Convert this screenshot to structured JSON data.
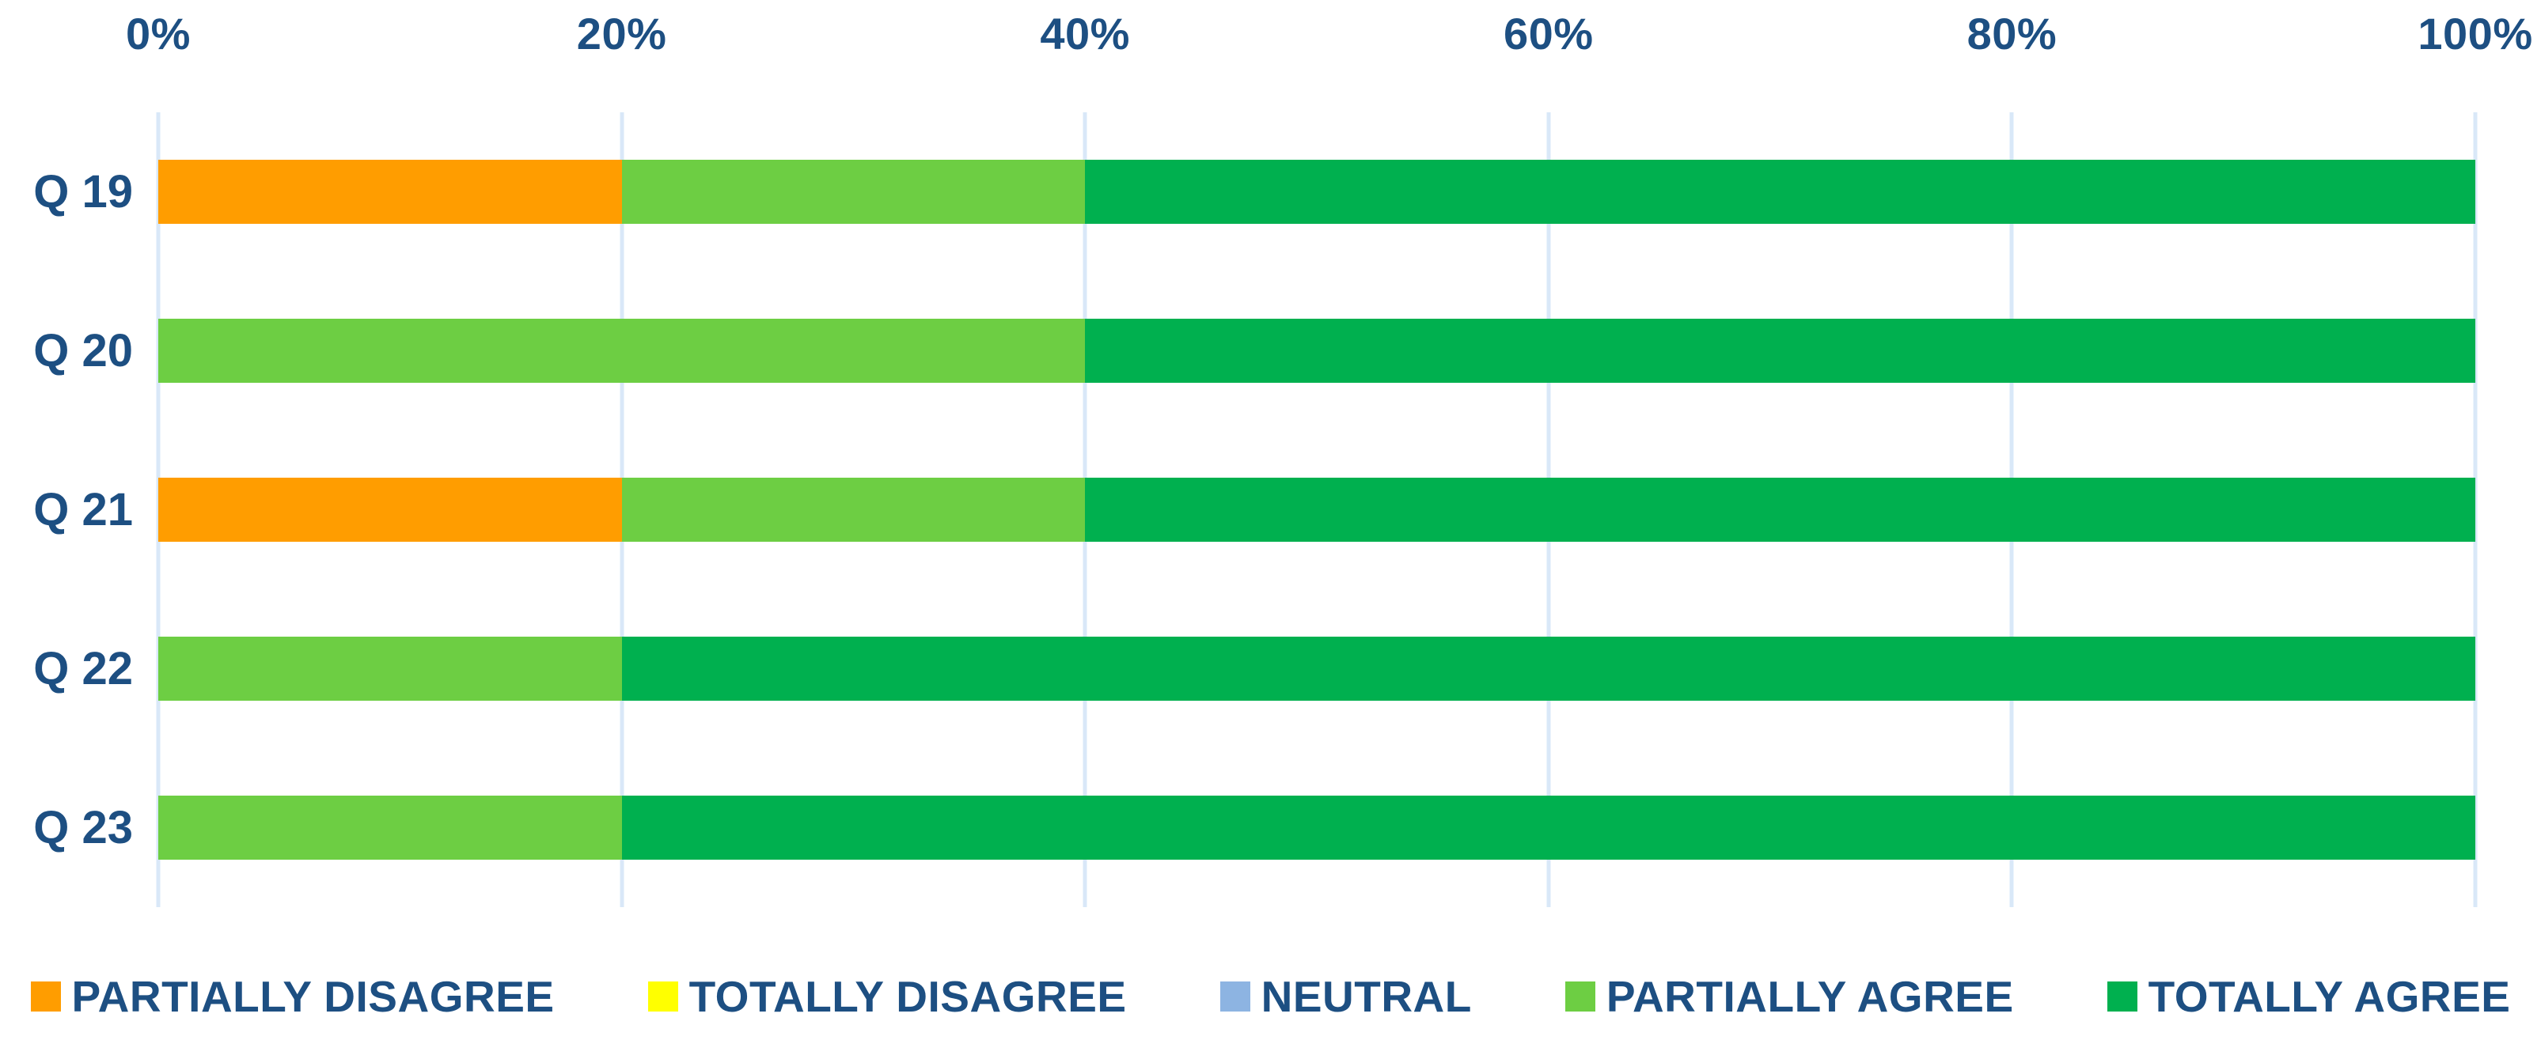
{
  "chart_data": {
    "type": "bar",
    "orientation": "horizontal",
    "stacked": true,
    "percent_stacked": true,
    "title": "",
    "xlabel": "",
    "ylabel": "",
    "categories": [
      "Q 19",
      "Q 20",
      "Q 21",
      "Q 22",
      "Q 23"
    ],
    "series": [
      {
        "name": "PARTIALLY DISAGREE",
        "color": "#FF9D00",
        "values": [
          20,
          0,
          20,
          0,
          0
        ]
      },
      {
        "name": "TOTALLY DISAGREE",
        "color": "#FFFF00",
        "values": [
          0,
          0,
          0,
          0,
          0
        ]
      },
      {
        "name": "NEUTRAL",
        "color": "#8DB4E2",
        "values": [
          0,
          0,
          0,
          0,
          0
        ]
      },
      {
        "name": "PARTIALLY AGREE",
        "color": "#6DCE43",
        "values": [
          20,
          40,
          20,
          20,
          20
        ]
      },
      {
        "name": "TOTALLY AGREE",
        "color": "#00B04F",
        "values": [
          60,
          60,
          60,
          80,
          80
        ]
      }
    ],
    "x_axis": {
      "position": "top",
      "min": 0,
      "max": 100,
      "tick_labels": [
        "0%",
        "20%",
        "40%",
        "60%",
        "80%",
        "100%"
      ],
      "tick_values": [
        0,
        20,
        40,
        60,
        80,
        100
      ]
    },
    "legend": {
      "position": "bottom",
      "items": [
        "PARTIALLY DISAGREE",
        "TOTALLY DISAGREE",
        "NEUTRAL",
        "PARTIALLY AGREE",
        "TOTALLY AGREE"
      ]
    },
    "grid": {
      "vertical": true,
      "horizontal": false
    }
  },
  "styles": {
    "background": "#FFFFFF",
    "text_color": "#1D4F82",
    "gridline_color": "#D9E8F8"
  }
}
